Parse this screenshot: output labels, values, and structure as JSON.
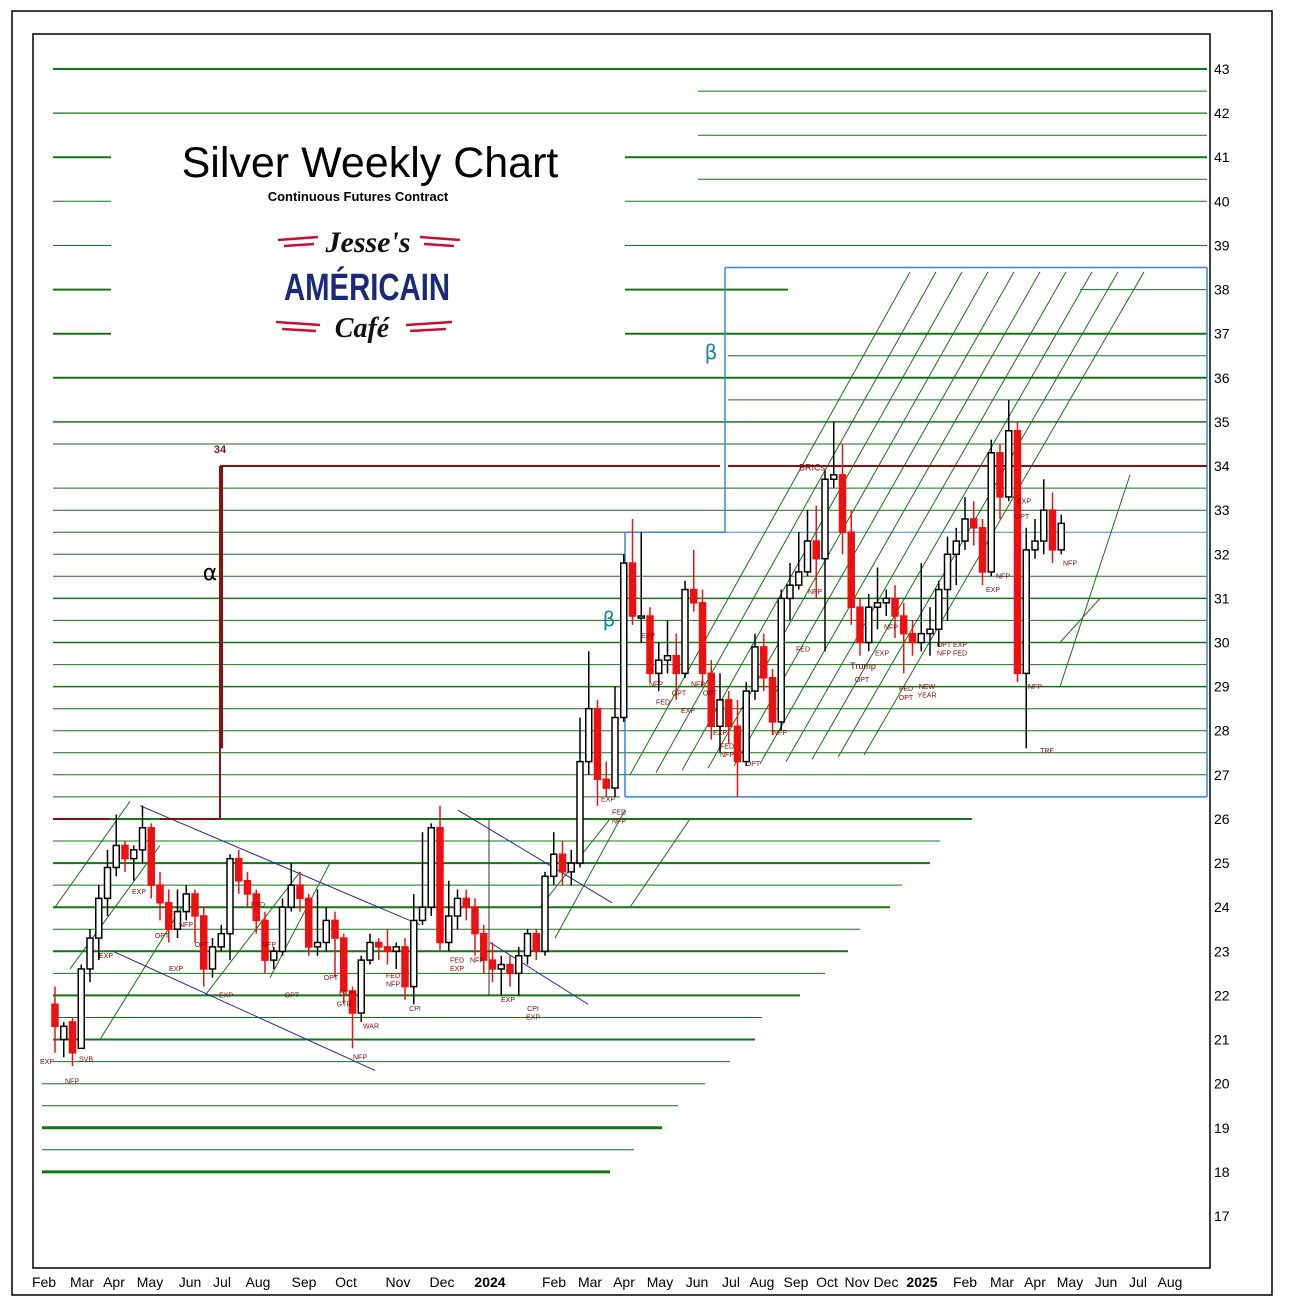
{
  "chart_data": {
    "type": "candlestick",
    "title": "Silver Weekly Chart",
    "subtitle": "Continuous Futures Contract",
    "logo": {
      "line1": "Jesse's",
      "line2": "AMÉRICAIN",
      "line3": "Café"
    },
    "y_ticks": [
      "43",
      "42",
      "41",
      "40",
      "39",
      "38",
      "37",
      "36",
      "35",
      "34",
      "33",
      "32",
      "31",
      "30",
      "29",
      "28",
      "27",
      "26",
      "25",
      "24",
      "23",
      "22",
      "21",
      "20",
      "19",
      "18",
      "17"
    ],
    "x_ticks": [
      "Feb",
      "Mar",
      "Apr",
      "May",
      "Jun",
      "Jul",
      "Aug",
      "Sep",
      "Oct",
      "Nov",
      "Dec",
      "2024",
      "Feb",
      "Mar",
      "Apr",
      "May",
      "Jun",
      "Jul",
      "Aug",
      "Sep",
      "Oct",
      "Nov",
      "Dec",
      "2025",
      "Feb",
      "Mar",
      "Apr",
      "May",
      "Jun",
      "Jul",
      "Aug"
    ],
    "ylim": [
      16.2,
      43.8
    ],
    "resistance_level": {
      "value": 34,
      "label": "34"
    },
    "greek_labels": [
      "α",
      "β",
      "β"
    ],
    "colors": {
      "up": "#ffffff",
      "down": "#ee1111",
      "grid": "#117711",
      "resistance": "#8b1010",
      "box": "#3388dd",
      "channel": "#2222aa",
      "annot": "#7a0a0a"
    },
    "candles": [
      [
        21.3,
        21.8,
        22.2,
        20.7,
        "dn"
      ],
      [
        21.0,
        21.3,
        21.4,
        20.6,
        "up"
      ],
      [
        21.4,
        20.7,
        21.5,
        20.4,
        "dn"
      ],
      [
        20.8,
        22.6,
        22.7,
        20.8,
        "up"
      ],
      [
        22.6,
        23.3,
        23.5,
        22.3,
        "up"
      ],
      [
        23.3,
        24.2,
        24.5,
        22.8,
        "up"
      ],
      [
        24.2,
        24.9,
        25.3,
        23.8,
        "up"
      ],
      [
        24.9,
        25.4,
        26.1,
        24.7,
        "up"
      ],
      [
        25.4,
        25.1,
        25.5,
        24.8,
        "dn"
      ],
      [
        25.1,
        25.3,
        25.4,
        24.6,
        "up"
      ],
      [
        25.3,
        25.8,
        26.3,
        25.0,
        "up"
      ],
      [
        25.8,
        24.5,
        25.9,
        24.2,
        "dn"
      ],
      [
        24.5,
        24.1,
        24.8,
        23.7,
        "dn"
      ],
      [
        24.1,
        23.5,
        24.4,
        23.2,
        "dn"
      ],
      [
        23.5,
        23.9,
        24.4,
        23.3,
        "up"
      ],
      [
        23.9,
        24.3,
        24.5,
        23.7,
        "up"
      ],
      [
        24.3,
        23.8,
        24.4,
        23.2,
        "dn"
      ],
      [
        23.8,
        22.6,
        24.0,
        22.2,
        "dn"
      ],
      [
        22.6,
        23.1,
        23.3,
        22.4,
        "up"
      ],
      [
        23.1,
        23.4,
        23.6,
        23.0,
        "up"
      ],
      [
        23.4,
        25.1,
        25.2,
        22.8,
        "up"
      ],
      [
        25.1,
        24.6,
        25.3,
        24.3,
        "dn"
      ],
      [
        24.6,
        24.3,
        24.8,
        24.0,
        "dn"
      ],
      [
        24.3,
        23.7,
        24.4,
        23.4,
        "dn"
      ],
      [
        23.7,
        22.8,
        23.9,
        22.5,
        "dn"
      ],
      [
        22.8,
        23.0,
        23.1,
        22.6,
        "up"
      ],
      [
        23.0,
        24.0,
        24.2,
        22.9,
        "up"
      ],
      [
        24.0,
        24.5,
        25.0,
        23.9,
        "up"
      ],
      [
        24.5,
        24.2,
        24.8,
        23.9,
        "dn"
      ],
      [
        24.2,
        23.1,
        24.3,
        22.9,
        "dn"
      ],
      [
        23.1,
        23.2,
        24.4,
        22.9,
        "up"
      ],
      [
        23.2,
        23.7,
        24.0,
        23.0,
        "up"
      ],
      [
        23.7,
        23.3,
        23.9,
        22.4,
        "dn"
      ],
      [
        23.3,
        22.1,
        23.4,
        21.8,
        "dn"
      ],
      [
        22.1,
        21.6,
        22.2,
        20.8,
        "dn"
      ],
      [
        21.6,
        22.8,
        22.9,
        21.4,
        "up"
      ],
      [
        22.8,
        23.2,
        23.4,
        22.7,
        "up"
      ],
      [
        23.2,
        23.1,
        23.3,
        22.8,
        "dn"
      ],
      [
        23.1,
        23.0,
        23.5,
        22.7,
        "dn"
      ],
      [
        23.0,
        23.1,
        23.2,
        22.6,
        "up"
      ],
      [
        23.1,
        22.2,
        23.3,
        21.9,
        "dn"
      ],
      [
        22.2,
        23.7,
        24.3,
        21.8,
        "up"
      ],
      [
        23.7,
        24.0,
        25.7,
        23.6,
        "up"
      ],
      [
        24.0,
        25.8,
        25.9,
        23.8,
        "up"
      ],
      [
        25.8,
        23.2,
        26.3,
        23.0,
        "dn"
      ],
      [
        23.2,
        23.8,
        24.6,
        23.0,
        "up"
      ],
      [
        23.8,
        24.2,
        24.4,
        23.5,
        "up"
      ],
      [
        24.2,
        24.0,
        24.4,
        23.7,
        "dn"
      ],
      [
        24.0,
        23.4,
        24.2,
        22.9,
        "dn"
      ],
      [
        23.4,
        22.8,
        23.6,
        22.5,
        "dn"
      ],
      [
        22.8,
        22.6,
        23.2,
        22.3,
        "dn"
      ],
      [
        22.6,
        22.7,
        22.9,
        22.0,
        "up"
      ],
      [
        22.7,
        22.5,
        22.9,
        22.2,
        "dn"
      ],
      [
        22.5,
        22.9,
        23.1,
        22.0,
        "up"
      ],
      [
        22.9,
        23.4,
        23.5,
        22.7,
        "up"
      ],
      [
        23.4,
        23.0,
        23.5,
        22.8,
        "dn"
      ],
      [
        23.0,
        24.7,
        24.8,
        22.9,
        "up"
      ],
      [
        24.7,
        25.2,
        25.7,
        24.5,
        "up"
      ],
      [
        25.2,
        24.8,
        25.5,
        24.5,
        "dn"
      ],
      [
        24.8,
        25.0,
        25.3,
        24.5,
        "up"
      ],
      [
        25.0,
        27.3,
        28.3,
        24.9,
        "up"
      ],
      [
        27.3,
        28.5,
        29.8,
        27.0,
        "up"
      ],
      [
        28.5,
        26.9,
        28.7,
        26.3,
        "dn"
      ],
      [
        26.9,
        26.7,
        27.3,
        26.5,
        "dn"
      ],
      [
        26.7,
        28.3,
        29.0,
        26.5,
        "up"
      ],
      [
        28.3,
        31.8,
        32.0,
        28.2,
        "up"
      ],
      [
        31.8,
        30.6,
        32.8,
        30.4,
        "dn"
      ],
      [
        30.6,
        30.6,
        32.5,
        30.0,
        "up"
      ],
      [
        30.6,
        29.3,
        30.8,
        29.1,
        "dn"
      ],
      [
        29.3,
        29.6,
        30.0,
        28.9,
        "up"
      ],
      [
        29.6,
        29.7,
        30.5,
        29.3,
        "up"
      ],
      [
        29.7,
        29.3,
        30.2,
        28.7,
        "dn"
      ],
      [
        29.3,
        31.2,
        31.4,
        29.2,
        "up"
      ],
      [
        31.2,
        30.9,
        32.1,
        30.7,
        "dn"
      ],
      [
        30.9,
        29.3,
        31.2,
        29.0,
        "dn"
      ],
      [
        29.3,
        28.1,
        29.6,
        27.8,
        "dn"
      ],
      [
        28.1,
        28.7,
        29.3,
        27.5,
        "up"
      ],
      [
        28.7,
        28.1,
        28.9,
        27.7,
        "dn"
      ],
      [
        28.1,
        27.3,
        28.7,
        26.5,
        "dn"
      ],
      [
        27.3,
        28.9,
        29.1,
        27.2,
        "up"
      ],
      [
        28.9,
        29.9,
        30.2,
        28.7,
        "up"
      ],
      [
        29.9,
        29.2,
        30.2,
        28.9,
        "dn"
      ],
      [
        29.2,
        28.2,
        29.4,
        27.9,
        "dn"
      ],
      [
        28.2,
        31.0,
        31.2,
        28.0,
        "up"
      ],
      [
        31.0,
        31.3,
        31.8,
        30.5,
        "up"
      ],
      [
        31.3,
        31.6,
        32.5,
        31.2,
        "up"
      ],
      [
        31.6,
        32.3,
        33.0,
        31.5,
        "up"
      ],
      [
        32.3,
        31.9,
        33.1,
        31.0,
        "dn"
      ],
      [
        31.9,
        33.7,
        33.9,
        29.8,
        "up"
      ],
      [
        33.7,
        33.8,
        35.0,
        33.5,
        "up"
      ],
      [
        33.8,
        32.5,
        34.5,
        32.0,
        "dn"
      ],
      [
        32.5,
        30.8,
        33.0,
        30.4,
        "dn"
      ],
      [
        30.8,
        30.0,
        31.0,
        29.7,
        "dn"
      ],
      [
        30.0,
        30.8,
        31.1,
        29.8,
        "up"
      ],
      [
        30.8,
        30.9,
        31.7,
        30.3,
        "up"
      ],
      [
        30.9,
        31.0,
        31.2,
        30.6,
        "up"
      ],
      [
        31.0,
        30.6,
        31.3,
        30.1,
        "dn"
      ],
      [
        30.6,
        30.2,
        30.9,
        29.3,
        "dn"
      ],
      [
        30.2,
        30.0,
        30.5,
        29.7,
        "dn"
      ],
      [
        30.0,
        30.2,
        31.8,
        29.8,
        "up"
      ],
      [
        30.2,
        30.3,
        30.8,
        29.7,
        "up"
      ],
      [
        30.3,
        31.2,
        31.4,
        29.9,
        "up"
      ],
      [
        31.2,
        32.0,
        32.4,
        30.5,
        "up"
      ],
      [
        32.0,
        32.3,
        32.6,
        31.3,
        "up"
      ],
      [
        32.3,
        32.8,
        33.3,
        32.1,
        "up"
      ],
      [
        32.8,
        32.6,
        33.2,
        32.2,
        "dn"
      ],
      [
        32.6,
        31.6,
        32.8,
        31.3,
        "dn"
      ],
      [
        31.6,
        34.3,
        34.6,
        31.5,
        "up"
      ],
      [
        34.3,
        33.3,
        34.5,
        32.8,
        "dn"
      ],
      [
        33.3,
        34.8,
        35.5,
        33.2,
        "up"
      ],
      [
        34.8,
        29.3,
        35.0,
        29.1,
        "dn"
      ],
      [
        29.3,
        32.1,
        32.6,
        27.6,
        "up"
      ],
      [
        32.1,
        32.3,
        32.8,
        31.9,
        "up"
      ],
      [
        32.3,
        33.0,
        33.7,
        32.0,
        "up"
      ],
      [
        33.0,
        32.1,
        33.4,
        31.8,
        "dn"
      ],
      [
        32.1,
        32.7,
        32.9,
        32.0,
        "up"
      ]
    ],
    "annotations": [
      {
        "text": "EXP",
        "x": 47,
        "v": 20.45
      },
      {
        "text": "NFP",
        "x": 72,
        "v": 20.0
      },
      {
        "text": "SVB",
        "x": 86,
        "v": 20.5
      },
      {
        "text": "EXP",
        "x": 106,
        "v": 22.85
      },
      {
        "text": "EXP",
        "x": 139,
        "v": 24.3
      },
      {
        "text": "OPT",
        "x": 162,
        "v": 23.3
      },
      {
        "text": "EXP",
        "x": 176,
        "v": 22.55
      },
      {
        "text": "NFP",
        "x": 186,
        "v": 23.55
      },
      {
        "text": "OPT",
        "x": 202,
        "v": 23.1
      },
      {
        "text": "EXP",
        "x": 226,
        "v": 21.95
      },
      {
        "text": "FED",
        "x": 258,
        "v": 24.0
      },
      {
        "text": "NFP",
        "x": 269,
        "v": 23.1
      },
      {
        "text": "OPT",
        "x": 292,
        "v": 21.95
      },
      {
        "text": "OPT",
        "x": 331,
        "v": 22.35
      },
      {
        "text": "EXP",
        "x": 346,
        "v": 22.0
      },
      {
        "text": "GTR",
        "x": 344,
        "v": 21.75
      },
      {
        "text": "NFP",
        "x": 360,
        "v": 20.55
      },
      {
        "text": "WAR",
        "x": 371,
        "v": 21.25
      },
      {
        "text": "FED",
        "x": 393,
        "v": 22.4
      },
      {
        "text": "NFP",
        "x": 393,
        "v": 22.2
      },
      {
        "text": "CPI",
        "x": 415,
        "v": 21.65
      },
      {
        "text": "FED",
        "x": 457,
        "v": 22.75
      },
      {
        "text": "EXP",
        "x": 457,
        "v": 22.55
      },
      {
        "text": "NFP",
        "x": 477,
        "v": 22.75
      },
      {
        "text": "EXP",
        "x": 508,
        "v": 21.85
      },
      {
        "text": "CPI",
        "x": 533,
        "v": 21.65
      },
      {
        "text": "EXP",
        "x": 533,
        "v": 21.45
      },
      {
        "text": "EXP",
        "x": 608,
        "v": 26.4
      },
      {
        "text": "FED",
        "x": 619,
        "v": 26.1
      },
      {
        "text": "NFP",
        "x": 619,
        "v": 25.9
      },
      {
        "text": "EXP",
        "x": 648,
        "v": 30.1
      },
      {
        "text": "NFP",
        "x": 656,
        "v": 29.0
      },
      {
        "text": "FED",
        "x": 663,
        "v": 28.6
      },
      {
        "text": "OPT",
        "x": 679,
        "v": 28.8
      },
      {
        "text": "EXP",
        "x": 688,
        "v": 28.4
      },
      {
        "text": "NFP",
        "x": 698,
        "v": 29.0
      },
      {
        "text": "OPT",
        "x": 710,
        "v": 28.8
      },
      {
        "text": "EXP",
        "x": 720,
        "v": 27.9
      },
      {
        "text": "FED",
        "x": 727,
        "v": 27.6
      },
      {
        "text": "NFP",
        "x": 727,
        "v": 27.4
      },
      {
        "text": "OPT",
        "x": 753,
        "v": 27.2
      },
      {
        "text": "NFP",
        "x": 780,
        "v": 27.9
      },
      {
        "text": "FED",
        "x": 803,
        "v": 29.8
      },
      {
        "text": "NFP",
        "x": 815,
        "v": 31.1
      },
      {
        "text": "BRICs",
        "x": 812,
        "v": 33.9
      },
      {
        "text": "Trump",
        "x": 863,
        "v": 29.4
      },
      {
        "text": "OPT",
        "x": 862,
        "v": 29.1
      },
      {
        "text": "EXP",
        "x": 882,
        "v": 29.7
      },
      {
        "text": "NFP",
        "x": 891,
        "v": 30.3
      },
      {
        "text": "FED",
        "x": 906,
        "v": 28.9
      },
      {
        "text": "OPT",
        "x": 906,
        "v": 28.7
      },
      {
        "text": "OPT",
        "x": 944,
        "v": 29.9
      },
      {
        "text": "NFP",
        "x": 944,
        "v": 29.7
      },
      {
        "text": "NEW",
        "x": 927,
        "v": 28.95
      },
      {
        "text": "YEAR",
        "x": 927,
        "v": 28.75
      },
      {
        "text": "EXP",
        "x": 960,
        "v": 29.9
      },
      {
        "text": "FED",
        "x": 960,
        "v": 29.7
      },
      {
        "text": "EXP",
        "x": 993,
        "v": 31.15
      },
      {
        "text": "NFP",
        "x": 1003,
        "v": 31.45
      },
      {
        "text": "EXP",
        "x": 1024,
        "v": 33.15
      },
      {
        "text": "OPT",
        "x": 1022,
        "v": 32.8
      },
      {
        "text": "NFP",
        "x": 1035,
        "v": 28.95
      },
      {
        "text": "TRF",
        "x": 1047,
        "v": 27.5
      },
      {
        "text": "NFP",
        "x": 1070,
        "v": 31.75
      }
    ]
  }
}
